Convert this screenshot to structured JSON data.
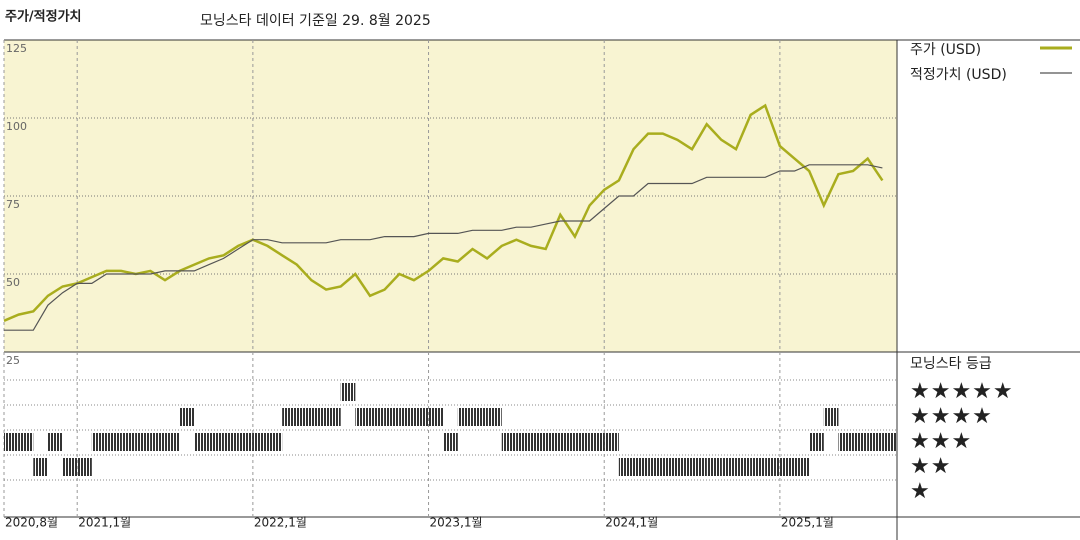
{
  "chart_data": [
    {
      "type": "line",
      "title": "주가/적정가치",
      "subtitle": "모닝스타 데이터 기준일 29. 8월 2025",
      "x": [
        "2020-08",
        "2020-09",
        "2020-10",
        "2020-11",
        "2020-12",
        "2021-01",
        "2021-02",
        "2021-03",
        "2021-04",
        "2021-05",
        "2021-06",
        "2021-07",
        "2021-08",
        "2021-09",
        "2021-10",
        "2021-11",
        "2021-12",
        "2022-01",
        "2022-02",
        "2022-03",
        "2022-04",
        "2022-05",
        "2022-06",
        "2022-07",
        "2022-08",
        "2022-09",
        "2022-10",
        "2022-11",
        "2022-12",
        "2023-01",
        "2023-02",
        "2023-03",
        "2023-04",
        "2023-05",
        "2023-06",
        "2023-07",
        "2023-08",
        "2023-09",
        "2023-10",
        "2023-11",
        "2023-12",
        "2024-01",
        "2024-02",
        "2024-03",
        "2024-04",
        "2024-05",
        "2024-06",
        "2024-07",
        "2024-08",
        "2024-09",
        "2024-10",
        "2024-11",
        "2024-12",
        "2025-01",
        "2025-02",
        "2025-03",
        "2025-04",
        "2025-05",
        "2025-06",
        "2025-07",
        "2025-08"
      ],
      "series": [
        {
          "name": "주가 (USD)",
          "color": "#a9ad1e",
          "values": [
            35,
            37,
            38,
            43,
            46,
            47,
            49,
            51,
            51,
            50,
            51,
            48,
            51,
            53,
            55,
            56,
            59,
            61,
            59,
            56,
            53,
            48,
            45,
            46,
            50,
            43,
            45,
            50,
            48,
            51,
            55,
            54,
            58,
            55,
            59,
            61,
            59,
            58,
            69,
            62,
            72,
            77,
            80,
            90,
            95,
            95,
            93,
            90,
            98,
            93,
            90,
            101,
            104,
            91,
            87,
            83,
            72,
            82,
            83,
            87,
            80
          ]
        },
        {
          "name": "적정가치 (USD)",
          "color": "#555555",
          "values": [
            32,
            32,
            32,
            40,
            44,
            47,
            47,
            50,
            50,
            50,
            50,
            51,
            51,
            51,
            53,
            55,
            58,
            61,
            61,
            60,
            60,
            60,
            60,
            61,
            61,
            61,
            62,
            62,
            62,
            63,
            63,
            63,
            64,
            64,
            64,
            65,
            65,
            66,
            67,
            67,
            67,
            71,
            75,
            75,
            79,
            79,
            79,
            79,
            81,
            81,
            81,
            81,
            81,
            83,
            83,
            85,
            85,
            85,
            85,
            85,
            84
          ]
        }
      ],
      "xlim": [
        "2020-08",
        "2025-09"
      ],
      "ylim": [
        25,
        125
      ],
      "yticks": [
        25,
        50,
        75,
        100,
        125
      ],
      "grid": true,
      "background": "#f8f4d2"
    },
    {
      "type": "rating",
      "title": "모닝스타 등급",
      "color": "#333333",
      "values": [
        3,
        3,
        2,
        3,
        2,
        2,
        3,
        3,
        3,
        3,
        3,
        3,
        4,
        3,
        3,
        3,
        3,
        3,
        3,
        4,
        4,
        4,
        4,
        5,
        4,
        4,
        4,
        4,
        4,
        4,
        3,
        4,
        4,
        4,
        3,
        3,
        3,
        3,
        3,
        3,
        3,
        3,
        2,
        2,
        2,
        2,
        2,
        2,
        2,
        2,
        2,
        2,
        2,
        2,
        2,
        3,
        4,
        3,
        3,
        3,
        3
      ],
      "ylim": [
        0,
        6.6
      ],
      "yticks": [
        {
          "value": 5,
          "label": "★★★★★"
        },
        {
          "value": 4,
          "label": "★★★★"
        },
        {
          "value": 3,
          "label": "★★★"
        },
        {
          "value": 2,
          "label": "★★"
        },
        {
          "value": 1,
          "label": "★"
        }
      ],
      "xticks": [
        {
          "value": "2020-08",
          "label": "2020,8월"
        },
        {
          "value": "2021-01",
          "label": "2021,1월"
        },
        {
          "value": "2022-01",
          "label": "2022,1월"
        },
        {
          "value": "2023-01",
          "label": "2023,1월"
        },
        {
          "value": "2024-01",
          "label": "2024,1월"
        },
        {
          "value": "2025-01",
          "label": "2025,1월"
        }
      ]
    }
  ]
}
